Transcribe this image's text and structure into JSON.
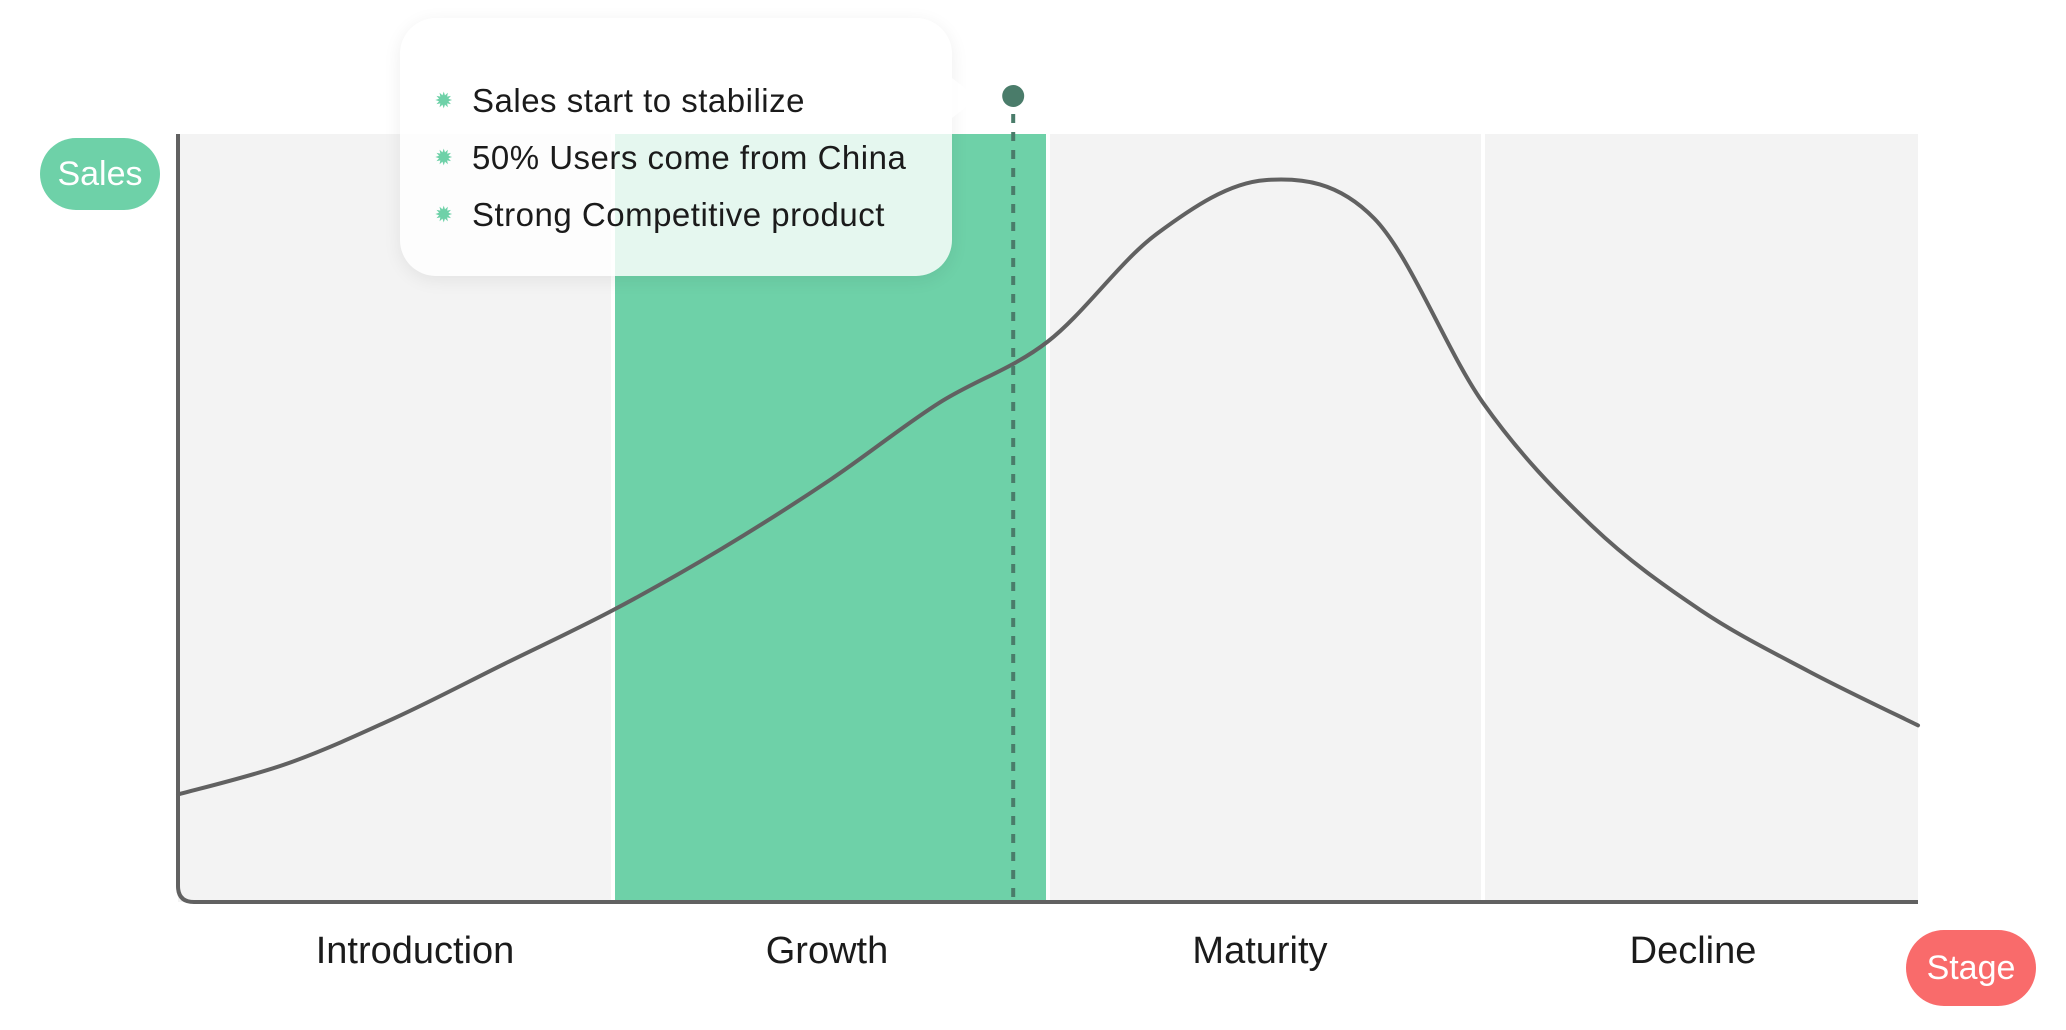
{
  "chart_data": {
    "type": "line",
    "title": "",
    "ylabel": "Sales",
    "xlabel": "Stage",
    "categories": [
      "Introduction",
      "Growth",
      "Maturity",
      "Decline"
    ],
    "highlighted_stage": "Growth",
    "x": [
      0,
      0.25,
      0.5,
      0.75,
      1,
      1.25,
      1.5,
      1.75,
      2,
      2.25,
      2.5,
      2.75,
      3,
      3.25,
      3.5,
      3.75,
      4
    ],
    "series": [
      {
        "name": "Sales",
        "values": [
          14,
          18,
          24,
          31,
          38,
          46,
          55,
          65,
          73,
          87,
          94,
          89,
          65,
          49,
          38,
          30,
          23
        ]
      }
    ],
    "ylim": [
      0,
      100
    ],
    "marker": {
      "x": 1.92,
      "notes": [
        "Sales start to stabilize",
        "50% Users come from China",
        "Strong Competitive product"
      ]
    },
    "colors": {
      "highlight": "#6ed1a8",
      "background_band": "#f3f3f3",
      "line": "#616161",
      "marker": "#4a7c6a",
      "xlabel_pill": "#f96b6b",
      "ylabel_pill": "#6ed1a8"
    }
  }
}
